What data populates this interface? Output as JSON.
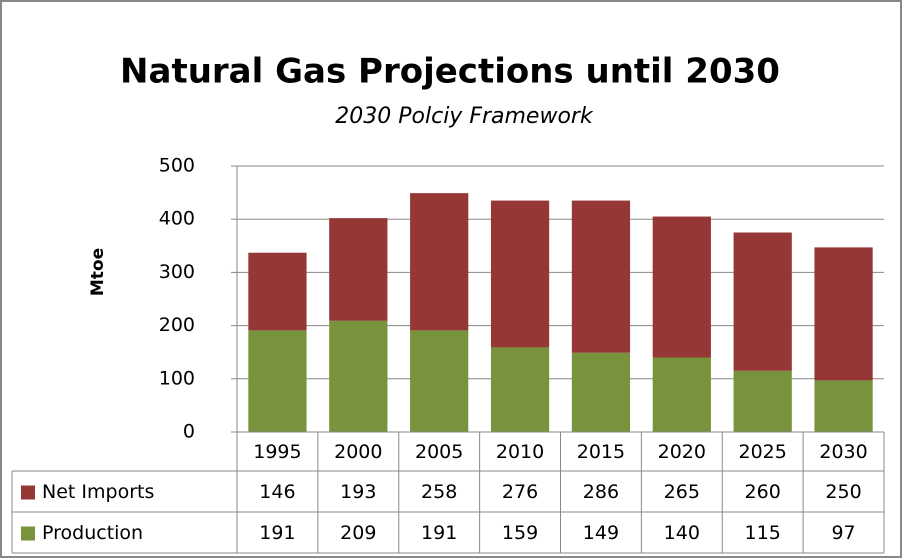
{
  "chart_data": {
    "type": "bar",
    "stacked": true,
    "title": "Natural Gas Projections until 2030",
    "subtitle": "2030 Polciy Framework",
    "y_label": "Mtoe",
    "categories": [
      "1995",
      "2000",
      "2005",
      "2010",
      "2015",
      "2020",
      "2025",
      "2030"
    ],
    "series": [
      {
        "name": "Net Imports",
        "color": "#953735",
        "values": [
          146,
          193,
          258,
          276,
          286,
          265,
          260,
          250
        ]
      },
      {
        "name": "Production",
        "color": "#77933c",
        "values": [
          191,
          209,
          191,
          159,
          149,
          140,
          115,
          97
        ]
      }
    ],
    "ylim": [
      0,
      500
    ],
    "yticks": [
      0,
      100,
      200,
      300,
      400,
      500
    ],
    "grid": true,
    "data_table": true
  }
}
